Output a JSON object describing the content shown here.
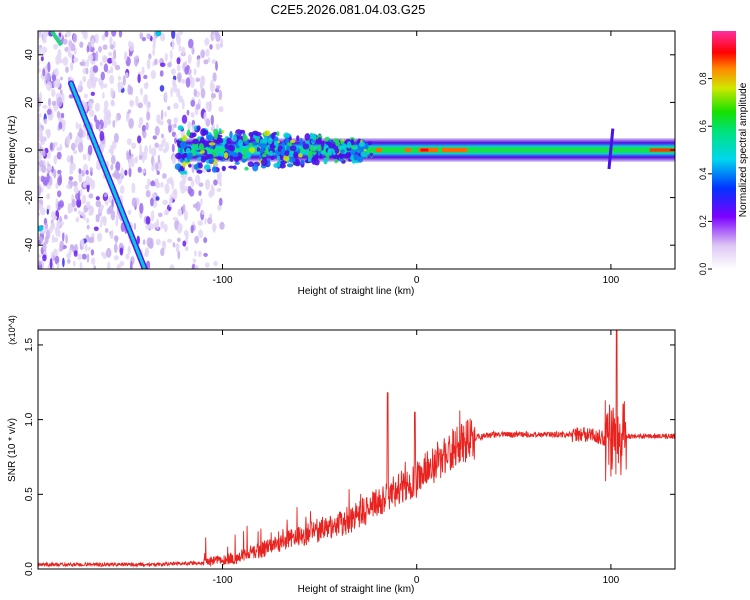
{
  "title": "C2E5.2026.081.04.03.G25",
  "chart_data": [
    {
      "type": "heatmap",
      "name": "spectrogram",
      "xlabel": "Height of straight line (km)",
      "ylabel": "Frequency (Hz)",
      "xlim": [
        -195,
        133
      ],
      "ylim": [
        -50,
        50
      ],
      "xticks": [
        -100,
        0,
        100
      ],
      "xtick_labels": [
        "-100",
        "0",
        "100"
      ],
      "yticks": [
        -40,
        -20,
        0,
        20,
        40
      ],
      "ytick_labels": [
        "-40",
        "-20",
        "0",
        "20",
        "40"
      ],
      "colorbar": {
        "label": "Normalized spectral amplitude",
        "range": [
          0,
          1
        ],
        "ticks": [
          0.0,
          0.2,
          0.4,
          0.6,
          0.8
        ],
        "tick_labels": [
          "0.0",
          "0.2",
          "0.4",
          "0.6",
          "0.8"
        ]
      },
      "features": [
        {
          "name": "diagonal streak",
          "x": [
            -178,
            -140
          ],
          "y": [
            28,
            -50
          ]
        },
        {
          "name": "main carrier band",
          "x": [
            -123,
            133
          ],
          "y": [
            0,
            0
          ]
        },
        {
          "name": "spike at 100 km",
          "x": [
            100,
            100
          ],
          "y": [
            -8,
            9
          ]
        }
      ]
    },
    {
      "type": "line",
      "name": "snr",
      "xlabel": "Height of straight line (km)",
      "ylabel": "SNR (10 * v/v)",
      "scale_label": "(x10^4)",
      "xlim": [
        -195,
        133
      ],
      "ylim": [
        0,
        1.6
      ],
      "xticks": [
        -100,
        0,
        100
      ],
      "xtick_labels": [
        "-100",
        "0",
        "100"
      ],
      "yticks": [
        0.0,
        0.5,
        1.0,
        1.5
      ],
      "ytick_labels": [
        "0.0",
        "0.5",
        "1.0",
        "1.5"
      ],
      "series": [
        {
          "name": "SNR",
          "color": "#e8231f",
          "x": [
            -195,
            -140,
            -110,
            -95,
            -80,
            -60,
            -45,
            -35,
            -25,
            -15,
            -5,
            0,
            10,
            20,
            30,
            40,
            50,
            60,
            70,
            80,
            90,
            95,
            100,
            105,
            110,
            120,
            133
          ],
          "y": [
            0.03,
            0.03,
            0.04,
            0.07,
            0.13,
            0.22,
            0.28,
            0.33,
            0.4,
            0.5,
            0.58,
            0.6,
            0.72,
            0.82,
            0.88,
            0.9,
            0.9,
            0.9,
            0.9,
            0.9,
            0.9,
            0.88,
            0.85,
            0.88,
            0.89,
            0.89,
            0.89
          ]
        }
      ],
      "annotations": [
        {
          "x": -15,
          "y": 1.18
        },
        {
          "x": -1,
          "y": 1.05
        },
        {
          "x": 103,
          "y": 1.6
        }
      ]
    }
  ]
}
